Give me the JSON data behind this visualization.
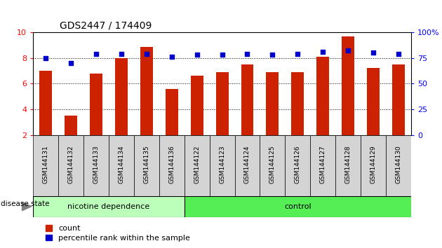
{
  "title": "GDS2447 / 174409",
  "samples": [
    "GSM144131",
    "GSM144132",
    "GSM144133",
    "GSM144134",
    "GSM144135",
    "GSM144136",
    "GSM144122",
    "GSM144123",
    "GSM144124",
    "GSM144125",
    "GSM144126",
    "GSM144127",
    "GSM144128",
    "GSM144129",
    "GSM144130"
  ],
  "bar_values": [
    7.0,
    3.5,
    6.8,
    8.0,
    8.85,
    5.6,
    6.6,
    6.9,
    7.5,
    6.9,
    6.9,
    8.1,
    9.7,
    7.2,
    7.5
  ],
  "percentile_values": [
    75,
    70,
    79,
    79,
    79,
    76,
    78,
    78,
    79,
    78,
    79,
    81,
    82,
    80,
    79
  ],
  "bar_color": "#cc2200",
  "percentile_color": "#0000cc",
  "ylim_left": [
    2,
    10
  ],
  "ylim_right": [
    0,
    100
  ],
  "yticks_left": [
    2,
    4,
    6,
    8,
    10
  ],
  "yticks_right": [
    0,
    25,
    50,
    75,
    100
  ],
  "group1_label": "nicotine dependence",
  "group2_label": "control",
  "group1_color": "#bbffbb",
  "group2_color": "#55ee55",
  "group1_count": 6,
  "group2_count": 9,
  "disease_state_label": "disease state",
  "legend_count_label": "count",
  "legend_pct_label": "percentile rank within the sample",
  "background_color": "#ffffff",
  "tick_box_color": "#d4d4d4"
}
